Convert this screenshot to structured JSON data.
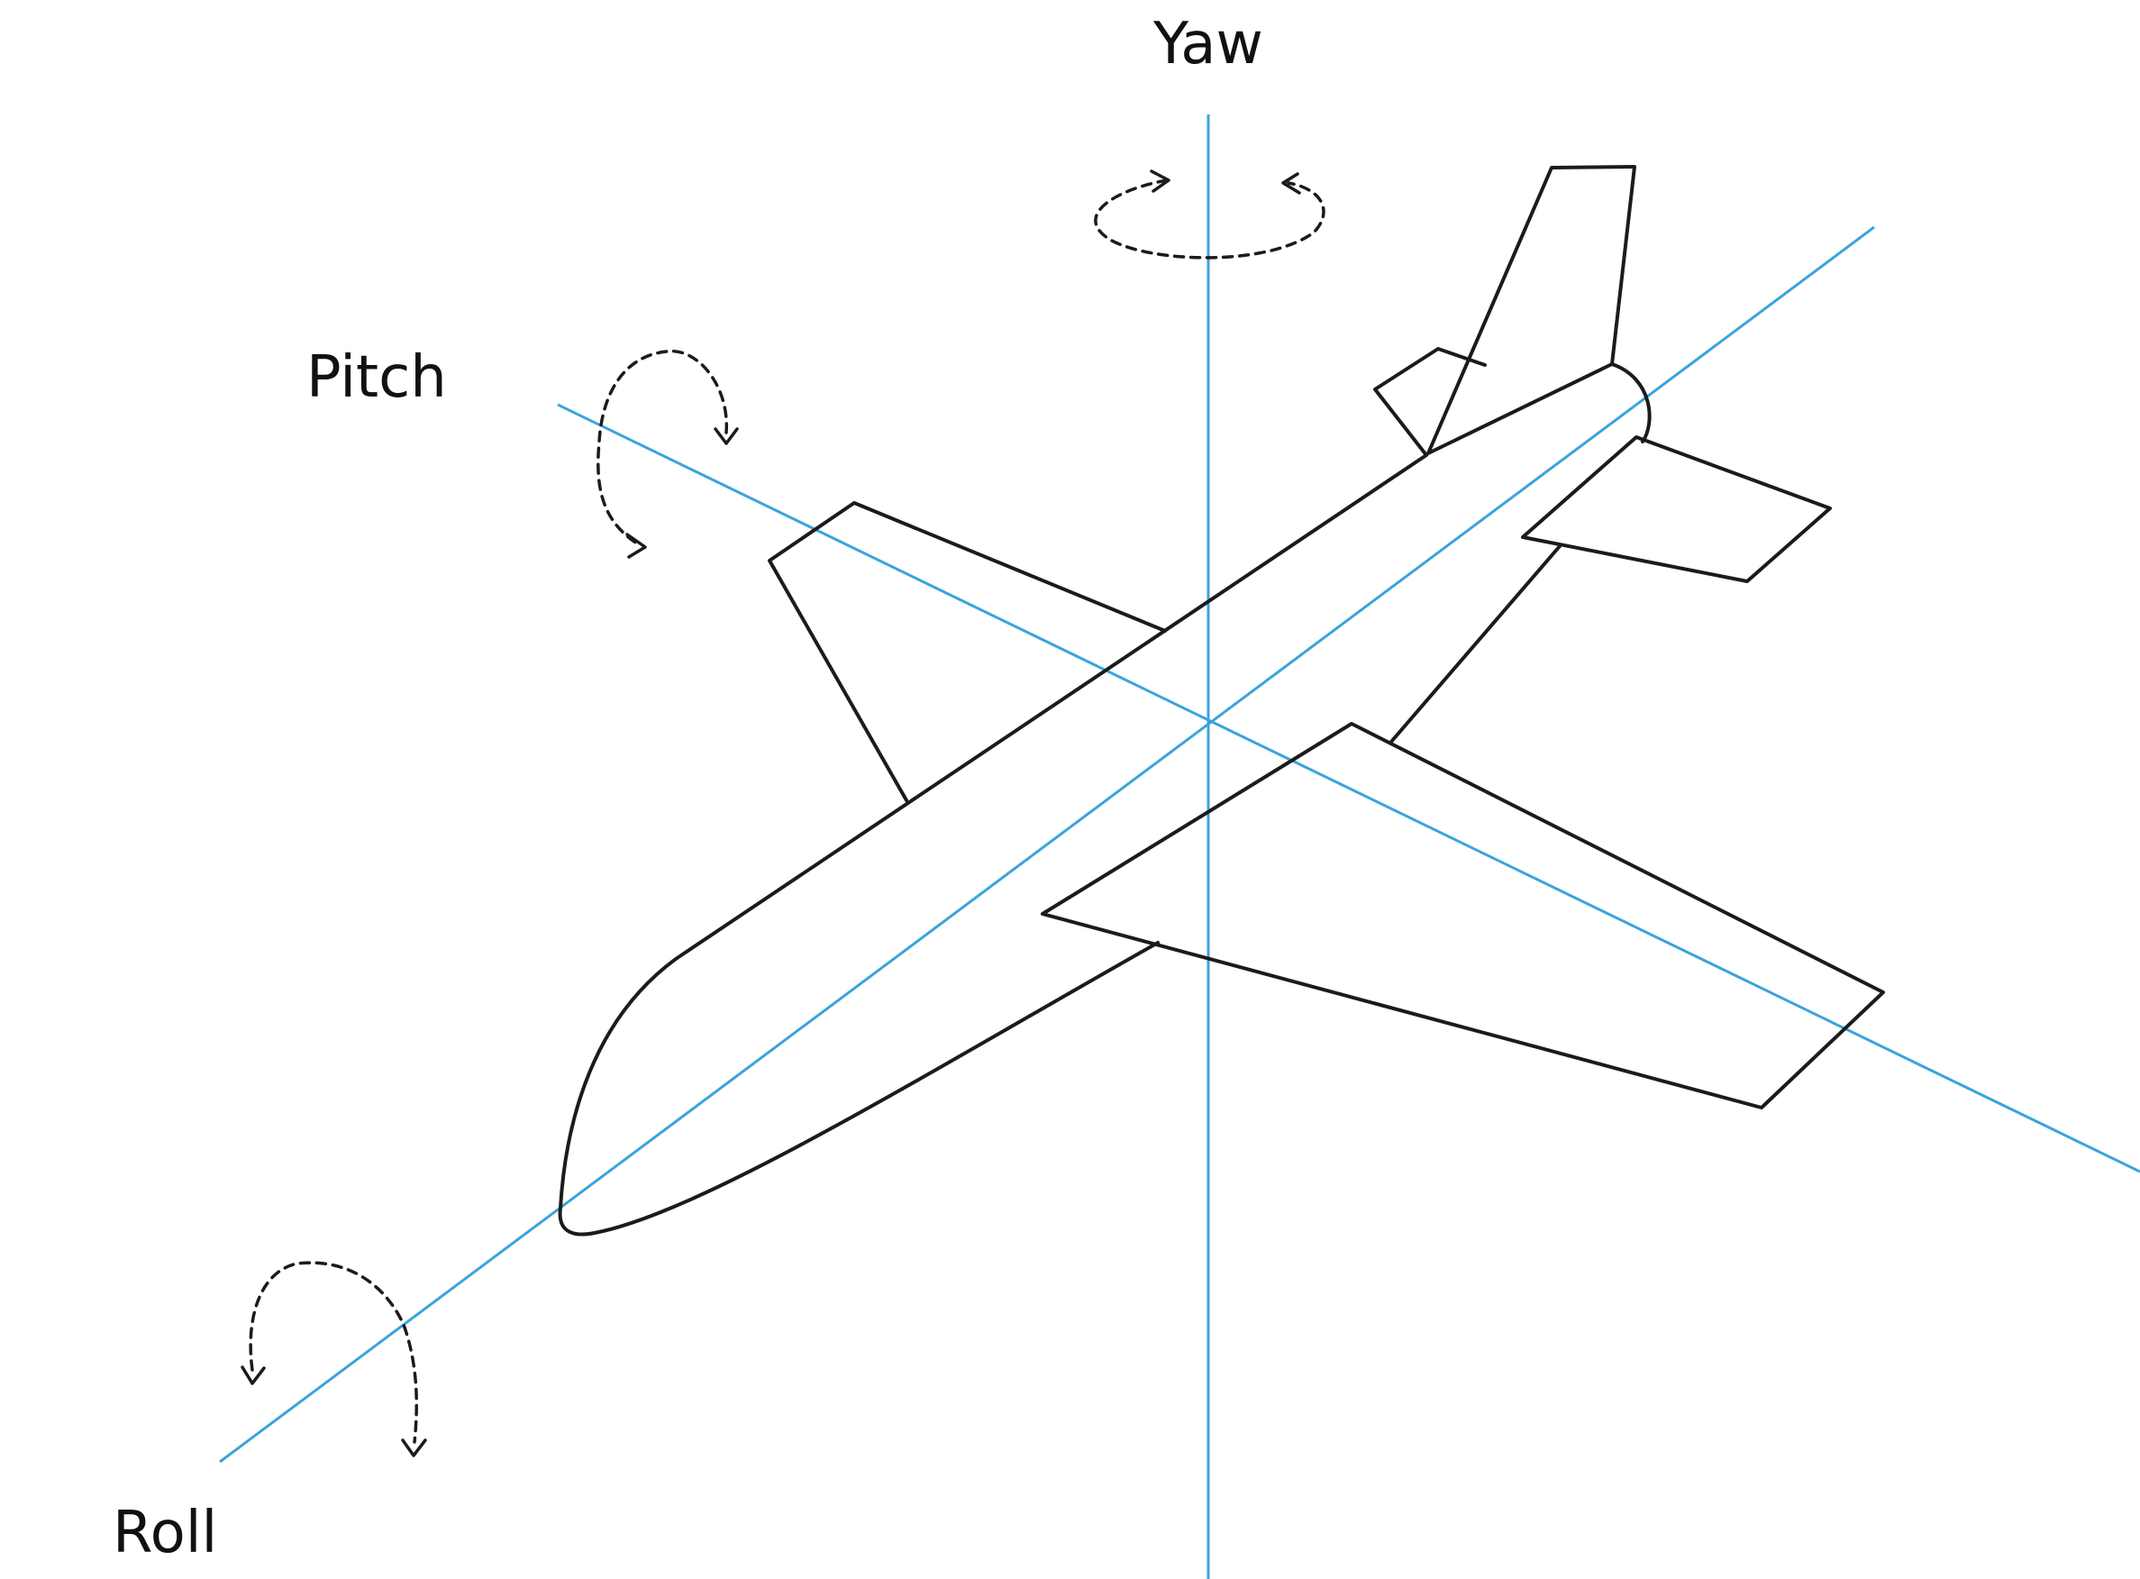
{
  "axes": {
    "yaw": {
      "label": "Yaw"
    },
    "pitch": {
      "label": "Pitch"
    },
    "roll": {
      "label": "Roll"
    }
  },
  "colors": {
    "axis": "#3ba3dc",
    "outline": "#1b1b1b",
    "background": "#ffffff"
  }
}
